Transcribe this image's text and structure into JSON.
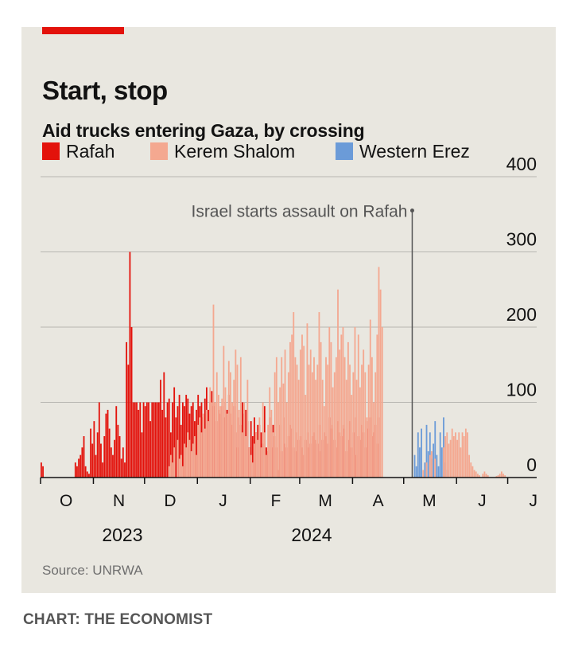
{
  "title": "Start, stop",
  "subtitle": "Aid trucks entering Gaza, by crossing",
  "source": "Source: UNRWA",
  "credit": "CHART: THE ECONOMIST",
  "colors": {
    "accent": "#e3120b",
    "background": "#e9e7e0",
    "rafah": "#e3120b",
    "kerem_shalom": "#f4a890",
    "western_erez": "#6b9bd8",
    "gridline": "#b7b6b1",
    "axis": "#121212",
    "text": "#121212"
  },
  "chart_data": {
    "type": "bar",
    "stacked": true,
    "title": "Start, stop",
    "subtitle": "Aid trucks entering Gaza, by crossing",
    "ylim": [
      0,
      400
    ],
    "yticks": [
      "400",
      "300",
      "200",
      "100",
      "0"
    ],
    "ytick_values": [
      400,
      300,
      200,
      100,
      0
    ],
    "xlabel": "",
    "ylabel": "",
    "x_range": [
      "2023-10-01",
      "2024-07-18"
    ],
    "month_ticks": [
      {
        "label": "O",
        "date": "2023-10-01"
      },
      {
        "label": "N",
        "date": "2023-11-01"
      },
      {
        "label": "D",
        "date": "2023-12-01"
      },
      {
        "label": "J",
        "date": "2024-01-01"
      },
      {
        "label": "F",
        "date": "2024-02-01"
      },
      {
        "label": "M",
        "date": "2024-03-01"
      },
      {
        "label": "A",
        "date": "2024-04-01"
      },
      {
        "label": "M",
        "date": "2024-05-01"
      },
      {
        "label": "J",
        "date": "2024-06-01"
      },
      {
        "label": "J",
        "date": "2024-07-01"
      }
    ],
    "year_labels": [
      {
        "label": "2023",
        "date": "2023-11-18"
      },
      {
        "label": "2024",
        "date": "2024-03-08"
      }
    ],
    "legend": [
      "Rafah",
      "Kerem Shalom",
      "Western Erez"
    ],
    "annotation": {
      "text": "Israel starts assault on Rafah",
      "date": "2024-05-06",
      "value": 355
    },
    "series_note": "Daily truck counts, index 0 = 2023-10-01",
    "series": [
      {
        "name": "Rafah",
        "start": "2023-10-01",
        "values": [
          20,
          15,
          0,
          0,
          0,
          0,
          0,
          0,
          0,
          0,
          0,
          0,
          0,
          0,
          0,
          0,
          0,
          0,
          0,
          0,
          20,
          15,
          25,
          30,
          40,
          55,
          15,
          8,
          5,
          65,
          45,
          75,
          30,
          60,
          100,
          45,
          20,
          55,
          85,
          90,
          65,
          40,
          30,
          50,
          95,
          70,
          55,
          25,
          40,
          20,
          180,
          150,
          300,
          200,
          100,
          100,
          100,
          90,
          100,
          60,
          100,
          95,
          100,
          100,
          75,
          100,
          100,
          100,
          100,
          100,
          130,
          90,
          140,
          80,
          100,
          105,
          60,
          100,
          120,
          80,
          95,
          110,
          70,
          100,
          95,
          110,
          105,
          85,
          95,
          100,
          75,
          90,
          110,
          95,
          100,
          80,
          105,
          120,
          90,
          100,
          115,
          95,
          100,
          75,
          90,
          85,
          95,
          80,
          100,
          90,
          110,
          85,
          70,
          95,
          60,
          40,
          80,
          70,
          100,
          85,
          90,
          75,
          40,
          75,
          55,
          80,
          60,
          70,
          70,
          60,
          45,
          95,
          40,
          35,
          80,
          40,
          70,
          55,
          40,
          10,
          70,
          35,
          80,
          45,
          40,
          55,
          70,
          65,
          40,
          35,
          60,
          50,
          55,
          40,
          30,
          50,
          60,
          40,
          45,
          55,
          60,
          50,
          45,
          70,
          35,
          50,
          60,
          55,
          45,
          80,
          65,
          70,
          50,
          40,
          75,
          60,
          55,
          70,
          65,
          35,
          50,
          75,
          40,
          60,
          80,
          30,
          55,
          50,
          70,
          60,
          40,
          75,
          65,
          80,
          55,
          60,
          70,
          45,
          80,
          0,
          0,
          0,
          0,
          0,
          0,
          0,
          0,
          0,
          0,
          0,
          0,
          0,
          0,
          0,
          0,
          0,
          0,
          0,
          0,
          0,
          0,
          0,
          0,
          0,
          0,
          0,
          0,
          0,
          0,
          0,
          0,
          0,
          0,
          0,
          0,
          0,
          0,
          0,
          0,
          0,
          0,
          0,
          0,
          0,
          0,
          0,
          0,
          0,
          0,
          0,
          0,
          0,
          0,
          0,
          0,
          0,
          0,
          0,
          0,
          0,
          0,
          0,
          0,
          0,
          0,
          0,
          0,
          0,
          0,
          0,
          0,
          0,
          0,
          0,
          0,
          0,
          0,
          0,
          0,
          0,
          0,
          0
        ]
      },
      {
        "name": "Kerem Shalom",
        "start": "2023-10-01",
        "values": [
          0,
          0,
          0,
          0,
          0,
          0,
          0,
          0,
          0,
          0,
          0,
          0,
          0,
          0,
          0,
          0,
          0,
          0,
          0,
          0,
          0,
          0,
          0,
          0,
          0,
          0,
          0,
          0,
          0,
          0,
          0,
          0,
          0,
          0,
          0,
          0,
          0,
          0,
          0,
          0,
          0,
          0,
          0,
          0,
          0,
          0,
          0,
          0,
          0,
          0,
          0,
          0,
          0,
          0,
          0,
          0,
          0,
          0,
          0,
          0,
          0,
          0,
          0,
          0,
          0,
          0,
          0,
          0,
          0,
          0,
          0,
          0,
          0,
          0,
          0,
          15,
          30,
          20,
          40,
          0,
          50,
          25,
          30,
          15,
          45,
          40,
          60,
          50,
          35,
          45,
          55,
          30,
          70,
          80,
          60,
          85,
          65,
          90,
          75,
          120,
          100,
          230,
          100,
          140,
          110,
          95,
          105,
          175,
          120,
          85,
          155,
          140,
          100,
          130,
          170,
          150,
          90,
          160,
          60,
          100,
          55,
          130,
          40,
          30,
          20,
          45,
          60,
          50,
          80,
          40,
          100,
          60,
          30,
          70,
          120,
          90,
          60,
          140,
          160,
          100,
          120,
          160,
          125,
          170,
          100,
          140,
          180,
          190,
          220,
          160,
          150,
          130,
          170,
          190,
          175,
          110,
          205,
          150,
          170,
          140,
          160,
          130,
          150,
          220,
          180,
          130,
          95,
          160,
          150,
          200,
          180,
          120,
          140,
          160,
          250,
          170,
          190,
          200,
          160,
          130,
          180,
          150,
          110,
          140,
          200,
          130,
          190,
          120,
          150,
          170,
          140,
          80,
          150,
          210,
          160,
          100,
          140,
          190,
          280,
          250,
          200,
          0,
          0,
          0,
          0,
          0,
          0,
          0,
          0,
          0,
          0,
          0,
          0,
          0,
          0,
          0,
          0,
          0,
          0,
          0,
          0,
          0,
          0,
          0,
          0,
          0,
          0,
          0,
          0,
          0,
          0,
          0,
          0,
          0,
          0,
          0,
          0,
          0,
          0,
          0,
          0,
          0,
          0,
          0,
          0,
          0,
          0,
          0,
          0,
          0,
          0,
          0,
          0,
          0,
          0,
          0,
          0,
          0,
          0,
          0,
          0,
          0,
          0,
          0,
          0,
          0,
          0,
          0,
          0,
          0
        ]
      },
      {
        "name": "Western Erez",
        "start": "2023-10-01",
        "values": [
          0,
          0,
          0,
          0,
          0,
          0,
          0,
          0,
          0,
          0,
          0,
          0,
          0,
          0,
          0,
          0,
          0,
          0,
          0,
          0,
          0,
          0,
          0,
          0,
          0,
          0,
          0,
          0,
          0,
          0,
          0,
          0,
          0,
          0,
          0,
          0,
          0,
          0,
          0,
          0,
          0,
          0,
          0,
          0,
          0,
          0,
          0,
          0,
          0,
          0,
          0,
          0,
          0,
          0,
          0,
          0,
          0,
          0,
          0,
          0,
          0,
          0,
          0,
          0,
          0,
          0,
          0,
          0,
          0,
          0,
          0,
          0,
          0,
          0,
          0,
          0,
          0,
          0,
          0,
          0,
          0,
          0,
          0,
          0,
          0,
          0,
          0,
          0,
          0,
          0,
          0,
          0,
          0,
          0,
          0,
          0,
          0,
          0,
          0,
          0,
          0,
          0,
          0,
          0,
          0,
          0,
          0,
          0,
          0,
          0,
          0,
          0,
          0,
          0,
          0,
          0,
          0,
          0,
          0,
          0,
          0,
          0,
          0,
          0,
          0,
          0,
          0,
          0,
          0,
          0,
          0,
          0,
          0,
          0,
          0,
          0,
          0,
          0,
          0,
          0,
          0,
          0,
          0,
          0,
          0,
          0,
          0,
          0,
          0,
          0,
          0,
          0,
          0,
          0,
          0,
          0,
          0,
          0,
          0,
          0,
          0,
          0,
          0,
          0,
          0,
          0,
          0,
          0,
          0,
          0,
          0,
          0,
          0,
          0,
          0,
          0,
          0,
          0,
          0,
          0,
          0,
          0,
          0,
          0,
          0,
          0,
          0,
          0,
          0,
          0,
          0,
          0,
          0,
          0,
          0,
          0,
          0,
          0,
          0,
          0,
          0,
          0,
          0,
          0,
          0,
          0,
          0,
          0,
          0,
          0,
          0,
          0,
          0,
          0,
          0,
          0,
          0,
          0,
          0,
          30,
          15,
          60,
          40,
          65,
          0,
          20,
          70,
          35,
          60,
          25,
          45,
          75,
          30,
          15,
          60,
          40,
          80,
          20,
          10,
          0,
          0,
          0,
          0,
          0,
          0,
          0,
          0,
          0,
          0,
          0,
          0,
          0,
          0,
          0,
          0,
          0,
          0,
          0,
          0,
          0,
          0,
          0,
          0,
          0,
          0,
          0,
          0,
          0,
          0,
          0,
          0,
          0,
          0,
          0,
          0,
          0,
          0,
          0
        ]
      },
      {
        "name": "Kerem Shalom (May–July)",
        "legend": "Kerem Shalom",
        "start": "2024-05-01",
        "values": [
          0,
          0,
          0,
          0,
          0,
          0,
          0,
          0,
          0,
          0,
          0,
          10,
          0,
          20,
          0,
          30,
          35,
          0,
          25,
          0,
          0,
          0,
          0,
          40,
          55,
          60,
          45,
          50,
          65,
          55,
          60,
          50,
          60,
          40,
          60,
          55,
          65,
          60,
          30,
          20,
          15,
          10,
          8,
          5,
          3,
          0,
          5,
          8,
          5,
          3,
          0,
          0,
          0,
          0,
          2,
          3,
          5,
          8,
          5,
          3,
          0,
          0,
          0,
          0,
          0,
          0,
          0,
          0,
          0,
          0,
          0,
          0,
          0,
          0,
          0,
          0,
          0,
          0,
          0
        ]
      }
    ]
  }
}
